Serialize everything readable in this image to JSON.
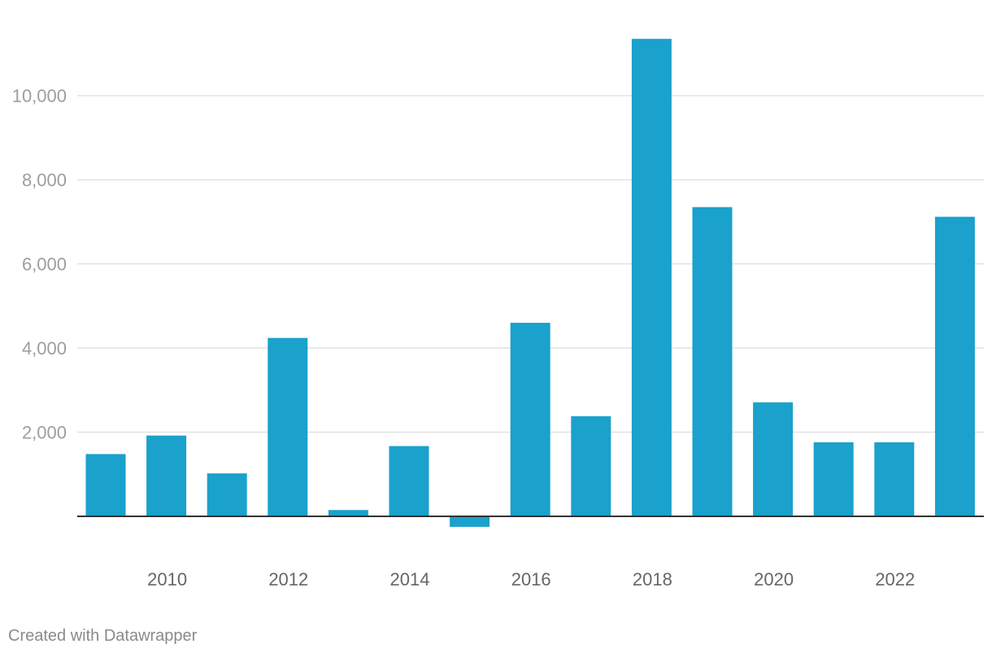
{
  "chart_data": {
    "type": "bar",
    "title": "",
    "xlabel": "",
    "ylabel": "",
    "categories": [
      "2009",
      "2010",
      "2011",
      "2012",
      "2013",
      "2014",
      "2015",
      "2016",
      "2017",
      "2018",
      "2019",
      "2020",
      "2021",
      "2022",
      "2023"
    ],
    "values": [
      1480,
      1920,
      1020,
      4240,
      150,
      1670,
      -250,
      4600,
      2380,
      11350,
      7350,
      2710,
      1760,
      1760,
      7120
    ],
    "x_tick_labels": [
      "2010",
      "2012",
      "2014",
      "2016",
      "2018",
      "2020",
      "2022"
    ],
    "y_ticks": [
      2000,
      4000,
      6000,
      8000,
      10000
    ],
    "y_tick_labels": [
      "2,000",
      "4,000",
      "6,000",
      "8,000",
      "10,000"
    ],
    "ylim": [
      -500,
      12000
    ],
    "grid": true,
    "legend": "none",
    "bar_color": "#1aa1cc",
    "grid_color": "#e2e2e2",
    "baseline_color": "#333333"
  },
  "footer": {
    "credit": "Created with Datawrapper"
  }
}
